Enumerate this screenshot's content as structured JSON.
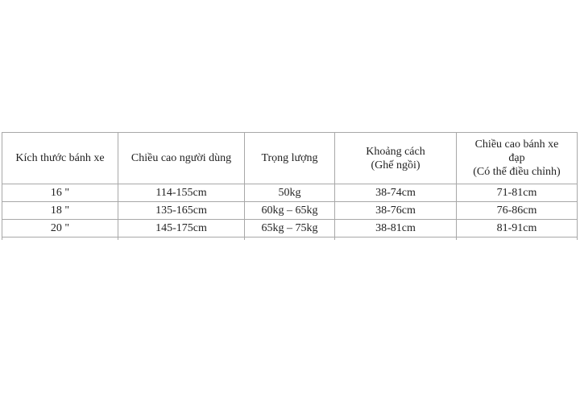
{
  "table": {
    "headers": [
      "Kích thước bánh xe",
      "Chiều cao người dùng",
      "Trọng lượng",
      "Khoảng cách\n(Ghế ngồi)",
      "Chiều cao bánh xe\nđạp\n(Có thể điều chỉnh)"
    ],
    "rows": [
      [
        "16 \"",
        "114-155cm",
        "50kg",
        "38-74cm",
        "71-81cm"
      ],
      [
        "18 \"",
        "135-165cm",
        "60kg – 65kg",
        "38-76cm",
        "76-86cm"
      ],
      [
        "20 \"",
        "145-175cm",
        "65kg – 75kg",
        "38-81cm",
        "81-91cm"
      ]
    ]
  }
}
